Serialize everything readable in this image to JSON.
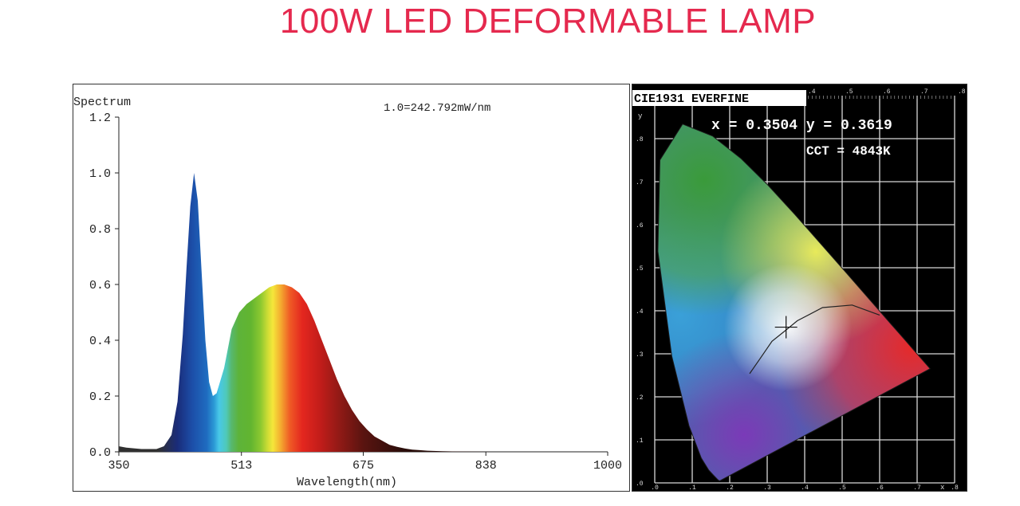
{
  "page": {
    "title": "100W LED DEFORMABLE LAMP",
    "colors": {
      "title": "#e5294e",
      "cie_background": "#000000"
    }
  },
  "chart_data": [
    {
      "type": "area",
      "ylabel": "Spectrum",
      "xlabel": "Wavelength(nm)",
      "annotation": "1.0=242.792mW/nm",
      "xlim": [
        350,
        1000
      ],
      "ylim": [
        0,
        1.2
      ],
      "x_ticks": [
        350,
        513,
        675,
        838,
        1000
      ],
      "y_ticks": [
        "0.0",
        "0.2",
        "0.4",
        "0.6",
        "0.8",
        "1.0",
        "1.2"
      ],
      "fill": "visible-spectrum gradient",
      "series": [
        {
          "x": [
            350,
            360,
            380,
            400,
            410,
            420,
            428,
            435,
            440,
            445,
            450,
            455,
            460,
            465,
            470,
            475,
            480,
            490,
            500,
            510,
            520,
            530,
            540,
            550,
            560,
            570,
            580,
            590,
            600,
            610,
            620,
            630,
            640,
            650,
            660,
            670,
            680,
            690,
            700,
            710,
            720,
            730,
            740,
            750,
            760,
            780,
            800,
            850,
            900,
            950,
            1000
          ],
          "y": [
            0.02,
            0.015,
            0.01,
            0.01,
            0.02,
            0.06,
            0.18,
            0.42,
            0.66,
            0.88,
            1.0,
            0.9,
            0.65,
            0.4,
            0.25,
            0.2,
            0.21,
            0.3,
            0.44,
            0.5,
            0.53,
            0.55,
            0.57,
            0.59,
            0.6,
            0.6,
            0.59,
            0.57,
            0.53,
            0.47,
            0.4,
            0.33,
            0.26,
            0.2,
            0.15,
            0.11,
            0.08,
            0.055,
            0.04,
            0.025,
            0.018,
            0.012,
            0.008,
            0.006,
            0.004,
            0.002,
            0.001,
            0.0,
            0.0,
            0.0,
            0.0
          ]
        }
      ]
    },
    {
      "type": "scatter",
      "title": "CIE1931 EVERFINE",
      "coordinates_label": "x = 0.3504 y = 0.3619",
      "cct_label": "CCT = 4843K",
      "point": {
        "x": 0.3504,
        "y": 0.3619
      },
      "xlim": [
        0,
        0.8
      ],
      "ylim": [
        0,
        0.9
      ],
      "x_ticks": [
        ".0",
        ".1",
        ".2",
        ".3",
        ".4",
        ".5",
        ".6",
        ".7",
        ".8"
      ],
      "y_ticks": [
        ".0",
        ".1",
        ".2",
        ".3",
        ".4",
        ".5",
        ".6",
        ".7",
        ".8"
      ],
      "top_ticks": [
        ".4",
        ".5",
        ".6",
        ".7",
        ".8"
      ],
      "y_axis_label": "y",
      "x_axis_label": "x"
    }
  ]
}
